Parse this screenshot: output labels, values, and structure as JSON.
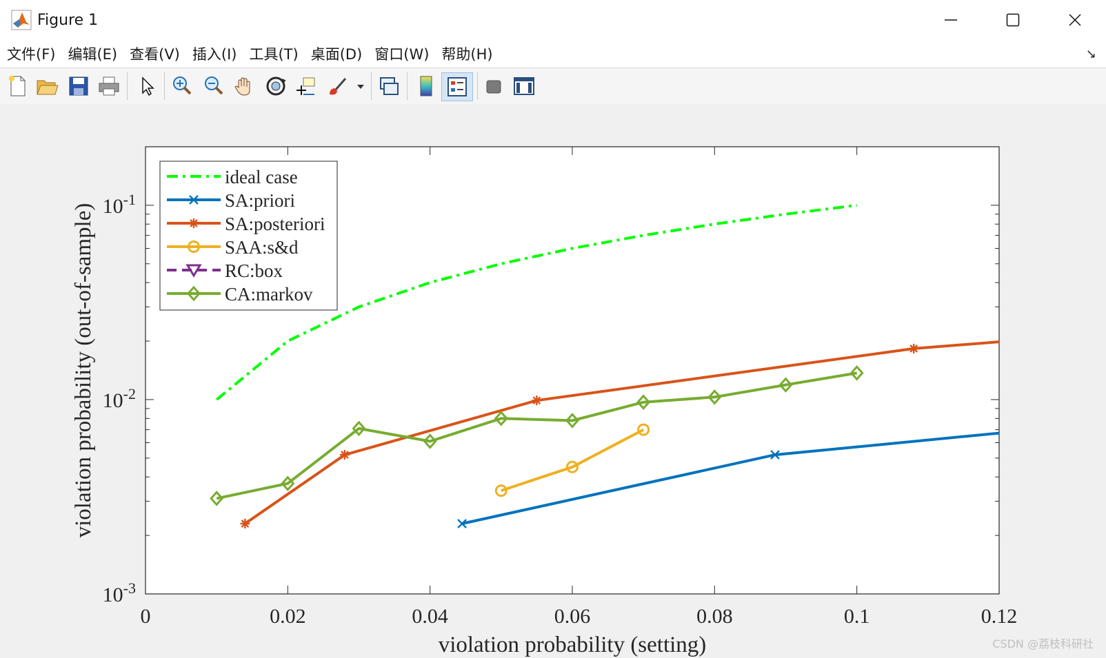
{
  "window": {
    "title": "Figure 1",
    "minimize_glyph": "—",
    "maximize_glyph": "☐",
    "close_glyph": "✕"
  },
  "menu": {
    "items": [
      "文件(F)",
      "编辑(E)",
      "查看(V)",
      "插入(I)",
      "工具(T)",
      "桌面(D)",
      "窗口(W)",
      "帮助(H)"
    ],
    "collapse_glyph": "↘"
  },
  "toolbar": {
    "icons": [
      "new-file-icon",
      "open-folder-icon",
      "save-icon",
      "print-icon",
      "pointer-icon",
      "zoom-in-icon",
      "zoom-out-icon",
      "pan-hand-icon",
      "rotate-3d-icon",
      "data-cursor-icon",
      "brush-icon",
      "link-plot-icon",
      "colorbar-icon",
      "legend-icon",
      "hide-plot-tools-icon",
      "show-plot-tools-icon"
    ]
  },
  "watermark": "CSDN @荔枝科研社",
  "colors": {
    "ideal": "#00ff00",
    "sa_priori": "#0072bd",
    "sa_posteriori": "#d95319",
    "saa": "#edb120",
    "rc_box": "#7e2f8e",
    "ca_markov": "#77ac30"
  },
  "chart_data": {
    "type": "line",
    "xlabel": "violation probability (setting)",
    "ylabel": "violation probability (out-of-sample)",
    "xlim": [
      0,
      0.12
    ],
    "ylim": [
      0.001,
      0.2
    ],
    "yscale": "log",
    "xticks": [
      0,
      0.02,
      0.04,
      0.06,
      0.08,
      0.1,
      0.12
    ],
    "xtick_labels": [
      "0",
      "0.02",
      "0.04",
      "0.06",
      "0.08",
      "0.1",
      "0.12"
    ],
    "yticks": [
      0.001,
      0.01,
      0.1
    ],
    "ytick_labels": [
      {
        "base": "10",
        "exp": "-3"
      },
      {
        "base": "10",
        "exp": "-2"
      },
      {
        "base": "10",
        "exp": "-1"
      }
    ],
    "grid": false,
    "legend_position": "top-left",
    "series": [
      {
        "name": "ideal case",
        "style": "dashdot",
        "marker": "none",
        "x": [
          0.01,
          0.02,
          0.03,
          0.04,
          0.05,
          0.06,
          0.07,
          0.08,
          0.09,
          0.1
        ],
        "y": [
          0.01,
          0.02,
          0.03,
          0.04,
          0.05,
          0.06,
          0.07,
          0.08,
          0.09,
          0.1
        ]
      },
      {
        "name": "SA:priori",
        "style": "solid",
        "marker": "x",
        "x": [
          0.0445,
          0.0885,
          0.125
        ],
        "y": [
          0.0023,
          0.0052,
          0.007
        ]
      },
      {
        "name": "SA:posteriori",
        "style": "solid",
        "marker": "star",
        "x": [
          0.014,
          0.028,
          0.055,
          0.108,
          0.125
        ],
        "y": [
          0.0023,
          0.0052,
          0.0099,
          0.0183,
          0.0205
        ]
      },
      {
        "name": "SAA:s&d",
        "style": "solid",
        "marker": "circle",
        "x": [
          0.05,
          0.06,
          0.07
        ],
        "y": [
          0.0034,
          0.0045,
          0.007
        ]
      },
      {
        "name": "RC:box",
        "style": "dashed",
        "marker": "triangle-down",
        "x": [],
        "y": []
      },
      {
        "name": "CA:markov",
        "style": "solid",
        "marker": "diamond",
        "x": [
          0.01,
          0.02,
          0.03,
          0.04,
          0.05,
          0.06,
          0.07,
          0.08,
          0.09,
          0.1
        ],
        "y": [
          0.0031,
          0.0037,
          0.0071,
          0.0061,
          0.008,
          0.0078,
          0.0097,
          0.0103,
          0.0119,
          0.0137
        ]
      }
    ]
  }
}
